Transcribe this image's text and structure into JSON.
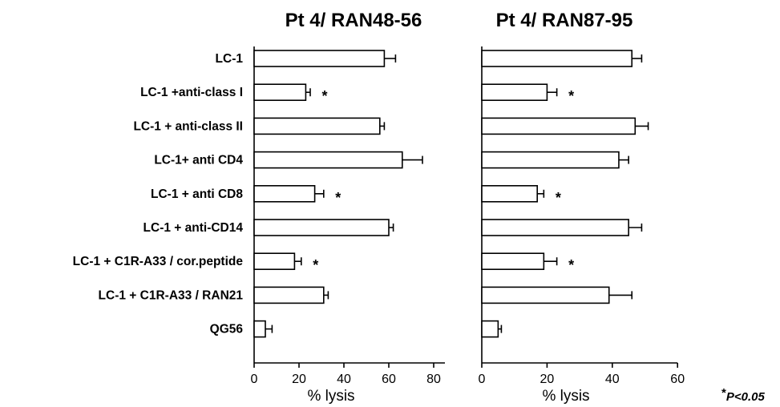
{
  "categories": [
    "LC-1",
    "LC-1 +anti-class I",
    "LC-1 + anti-class II",
    "LC-1+ anti CD4",
    "LC-1 + anti CD8",
    "LC-1 + anti-CD14",
    "LC-1 + C1R-A33 / cor.peptide",
    "LC-1 + C1R-A33 / RAN21",
    "QG56"
  ],
  "footnote": {
    "star": "*",
    "text": "P<0.05"
  },
  "chart_data": [
    {
      "type": "bar",
      "orientation": "horizontal",
      "title": "Pt 4/  RAN48-56",
      "xlabel": "% lysis",
      "xlim": [
        0,
        85
      ],
      "xticks": [
        "0",
        "20",
        "40",
        "60",
        "80"
      ],
      "categories": [
        "LC-1",
        "LC-1 +anti-class I",
        "LC-1 + anti-class II",
        "LC-1+ anti CD4",
        "LC-1 + anti CD8",
        "LC-1 + anti-CD14",
        "LC-1 + C1R-A33 / cor.peptide",
        "LC-1 + C1R-A33 / RAN21",
        "QG56"
      ],
      "values": [
        58,
        23,
        56,
        66,
        27,
        60,
        18,
        31,
        5
      ],
      "errors": [
        5,
        2,
        2,
        9,
        4,
        2,
        3,
        2,
        3
      ],
      "significant": [
        false,
        true,
        false,
        false,
        true,
        false,
        true,
        false,
        false
      ]
    },
    {
      "type": "bar",
      "orientation": "horizontal",
      "title": "Pt 4/ RAN87-95",
      "xlabel": "% lysis",
      "xlim": [
        0,
        60
      ],
      "xticks": [
        "0",
        "20",
        "40",
        "60"
      ],
      "categories": [
        "LC-1",
        "LC-1 +anti-class I",
        "LC-1 + anti-class II",
        "LC-1+ anti CD4",
        "LC-1 + anti CD8",
        "LC-1 + anti-CD14",
        "LC-1 + C1R-A33 / cor.peptide",
        "LC-1 + C1R-A33 / RAN21",
        "QG56"
      ],
      "values": [
        46,
        20,
        47,
        42,
        17,
        45,
        19,
        39,
        5
      ],
      "errors": [
        3,
        3,
        4,
        3,
        2,
        4,
        4,
        7,
        1
      ],
      "significant": [
        false,
        true,
        false,
        false,
        true,
        false,
        true,
        false,
        false
      ]
    }
  ]
}
